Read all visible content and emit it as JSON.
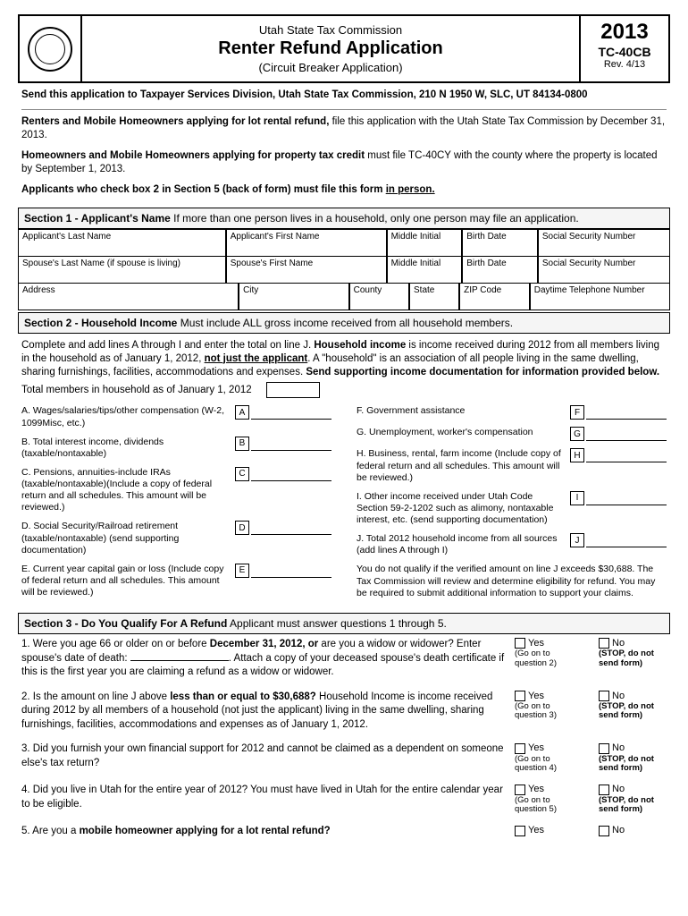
{
  "header": {
    "commission": "Utah State Tax Commission",
    "title": "Renter Refund Application",
    "subtitle": "(Circuit Breaker Application)",
    "year": "2013",
    "form_code": "TC-40CB",
    "revision": "Rev. 4/13"
  },
  "send_to": "Send this application to Taxpayer Services Division, Utah State Tax Commission, 210 N 1950 W, SLC, UT 84134-0800",
  "intro": {
    "p1a": "Renters and Mobile Homeowners applying for lot rental refund,",
    "p1b": " file this application with the Utah State Tax Commission by December 31, 2013.",
    "p2a": "Homeowners and Mobile Homeowners applying for property tax credit",
    "p2b": " must file TC-40CY with the county where the property is located by September 1, 2013.",
    "p3a": "Applicants who check box 2 in Section 5 (back of form) must file this form ",
    "p3b": "in person."
  },
  "section1": {
    "title": "Section 1 - Applicant's Name",
    "desc": "  If more than one person lives in a household, only one person may file an application.",
    "r1": {
      "c1": "Applicant's Last Name",
      "c2": "Applicant's First Name",
      "c3": "Middle Initial",
      "c4": "Birth Date",
      "c5": "Social Security Number"
    },
    "r2": {
      "c1": "Spouse's Last Name (if spouse is living)",
      "c2": "Spouse's First Name",
      "c3": "Middle Initial",
      "c4": "Birth Date",
      "c5": "Social Security Number"
    },
    "r3": {
      "c1": "Address",
      "c2": "City",
      "c3": "County",
      "c4": "State",
      "c5": "ZIP Code",
      "c6": "Daytime Telephone Number"
    }
  },
  "section2": {
    "title": "Section 2 - Household Income",
    "desc": "  Must include ALL gross income received from all household members.",
    "para_a": "Complete and add lines A through I and enter the total on line J. ",
    "para_b": "Household income",
    "para_c": " is income received during 2012 from all members living in the household as of January 1, 2012, ",
    "para_d": "not just the applicant",
    "para_e": ". A \"household\" is an association of all people living in the same dwelling, sharing furnishings, facilities, accommodations and expenses. ",
    "para_f": "Send supporting income documentation for information provided below.",
    "total_label": "Total members in household as of January 1, 2012",
    "left": [
      {
        "letter": "A",
        "text": "A. Wages/salaries/tips/other compensation (W-2, 1099Misc, etc.)"
      },
      {
        "letter": "B",
        "text": "B. Total interest income, dividends (taxable/nontaxable)"
      },
      {
        "letter": "C",
        "text": "C. Pensions, annuities-include IRAs (taxable/nontaxable)(Include a copy of federal return and all schedules. This amount will be reviewed.)"
      },
      {
        "letter": "D",
        "text": "D. Social Security/Railroad retirement (taxable/nontaxable) (send supporting documentation)"
      },
      {
        "letter": "E",
        "text": "E. Current year capital gain or loss (Include copy of federal return and all schedules. This amount will be reviewed.)"
      }
    ],
    "right": [
      {
        "letter": "F",
        "text": "F. Government assistance"
      },
      {
        "letter": "G",
        "text": "G. Unemployment, worker's compensation"
      },
      {
        "letter": "H",
        "text": "H. Business, rental, farm income (Include copy of federal return and all schedules. This amount will be reviewed.)"
      },
      {
        "letter": "I",
        "text": "I. Other income received under Utah Code Section 59-2-1202 such as alimony, nontaxable interest, etc. (send supporting documentation)"
      },
      {
        "letter": "J",
        "text": "J. Total 2012 household income from all sources (add lines A through I)"
      }
    ],
    "note": "You do not qualify if the verified amount on line J exceeds $30,688. The Tax Commission will review and determine eligibility for refund. You may be required to submit additional information to support your claims."
  },
  "section3": {
    "title": "Section 3 - Do You Qualify For A Refund",
    "desc": "  Applicant must answer questions 1 through 5.",
    "q1a": "1. Were you age 66 or older on or before ",
    "q1b": "December 31, 2012, or",
    "q1c": " are you a widow or widower? Enter spouse's date of death: ",
    "q1d": ". Attach a copy of your deceased spouse's death certificate if this is the first year you are claiming a refund as a widow or widower.",
    "q2a": "2. Is the amount on line J above ",
    "q2b": "less than or equal to $30,688?",
    "q2c": " Household Income is income received during 2012 by all members of a household (not just the applicant) living in the same dwelling, sharing furnishings, facilities, accommodations and expenses as of January 1, 2012.",
    "q3": "3. Did you furnish your own financial support for 2012 and cannot be claimed as a dependent on someone else's tax return?",
    "q4": "4. Did you live in Utah for the entire year of 2012? You must have lived in Utah for the entire calendar year to be eligible.",
    "q5a": "5. Are you a ",
    "q5b": "mobile homeowner applying for a lot rental refund?",
    "yes": "Yes",
    "no": "No",
    "go2": "(Go on to question 2)",
    "go3": "(Go on to question 3)",
    "go4": "(Go on to question 4)",
    "go5": "(Go on to question 5)",
    "stop": "(STOP, do not send form)"
  }
}
